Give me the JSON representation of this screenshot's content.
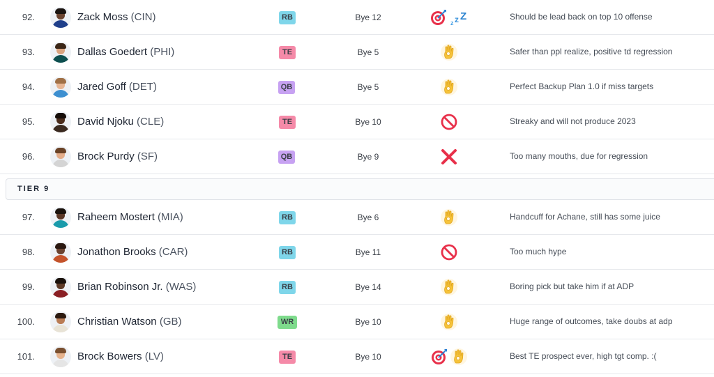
{
  "colors": {
    "RB": "#7fd6ea",
    "TE": "#f58aa8",
    "QB": "#c7a2f2",
    "WR": "#7edb8c"
  },
  "tier_label": "TIER 9",
  "players": [
    {
      "rank": "92.",
      "first": "Zack Moss",
      "team": "(CIN)",
      "pos": "RB",
      "bye": "Bye 12",
      "icons": [
        "target-icon",
        "sleeper-zzz-icon"
      ],
      "note": "Should be lead back on top 10 offense",
      "skin": "#6b4430",
      "hair": "#1b1410",
      "jersey": "#1f3f8a"
    },
    {
      "rank": "93.",
      "first": "Dallas Goedert",
      "team": "(PHI)",
      "pos": "TE",
      "bye": "Bye 5",
      "icons": [
        "ok-hand-icon"
      ],
      "note": "Safer than ppl realize, positive td regression",
      "skin": "#d9a37f",
      "hair": "#3b2616",
      "jersey": "#0d4f4f"
    },
    {
      "rank": "94.",
      "first": "Jared Goff",
      "team": "(DET)",
      "pos": "QB",
      "bye": "Bye 5",
      "icons": [
        "ok-hand-icon"
      ],
      "note": "Perfect Backup Plan 1.0 if miss targets",
      "skin": "#e7b593",
      "hair": "#a07046",
      "jersey": "#3d8fd0"
    },
    {
      "rank": "95.",
      "first": "David Njoku",
      "team": "(CLE)",
      "pos": "TE",
      "bye": "Bye 10",
      "icons": [
        "prohibited-icon"
      ],
      "note": "Streaky and will not produce 2023",
      "skin": "#4a2c1c",
      "hair": "#150d08",
      "jersey": "#3a2a20"
    },
    {
      "rank": "96.",
      "first": "Brock Purdy",
      "team": "(SF)",
      "pos": "QB",
      "bye": "Bye 9",
      "icons": [
        "cross-mark-icon"
      ],
      "note": "Too many mouths, due for regression",
      "skin": "#e4ad8a",
      "hair": "#6a4226",
      "jersey": "#d4d4d4"
    },
    {
      "rank": "97.",
      "first": "Raheem Mostert",
      "team": "(MIA)",
      "pos": "RB",
      "bye": "Bye 6",
      "icons": [
        "ok-hand-icon"
      ],
      "note": "Handcuff for Achane, still has some juice",
      "skin": "#5a3726",
      "hair": "#1a120c",
      "jersey": "#1a9bab"
    },
    {
      "rank": "98.",
      "first": "Jonathon Brooks",
      "team": "(CAR)",
      "pos": "RB",
      "bye": "Bye 11",
      "icons": [
        "prohibited-icon"
      ],
      "note": "Too much hype",
      "skin": "#6a4230",
      "hair": "#2a1810",
      "jersey": "#c4532b"
    },
    {
      "rank": "99.",
      "first": "Brian Robinson Jr.",
      "team": "(WAS)",
      "pos": "RB",
      "bye": "Bye 14",
      "icons": [
        "ok-hand-icon"
      ],
      "note": "Boring pick but take him if at ADP",
      "skin": "#5e3a27",
      "hair": "#1a110b",
      "jersey": "#8a1f24"
    },
    {
      "rank": "100.",
      "first": "Christian Watson",
      "team": "(GB)",
      "pos": "WR",
      "bye": "Bye 10",
      "icons": [
        "ok-hand-icon"
      ],
      "note": "Huge range of outcomes, take doubs at adp",
      "skin": "#b97c55",
      "hair": "#2c1a10",
      "jersey": "#e8e3d6"
    },
    {
      "rank": "101.",
      "first": "Brock Bowers",
      "team": "(LV)",
      "pos": "TE",
      "bye": "Bye 10",
      "icons": [
        "target-icon",
        "ok-hand-icon"
      ],
      "note": "Best TE prospect ever, high tgt comp. :(",
      "skin": "#e6b38e",
      "hair": "#7a5030",
      "jersey": "#e5e5e5"
    }
  ]
}
